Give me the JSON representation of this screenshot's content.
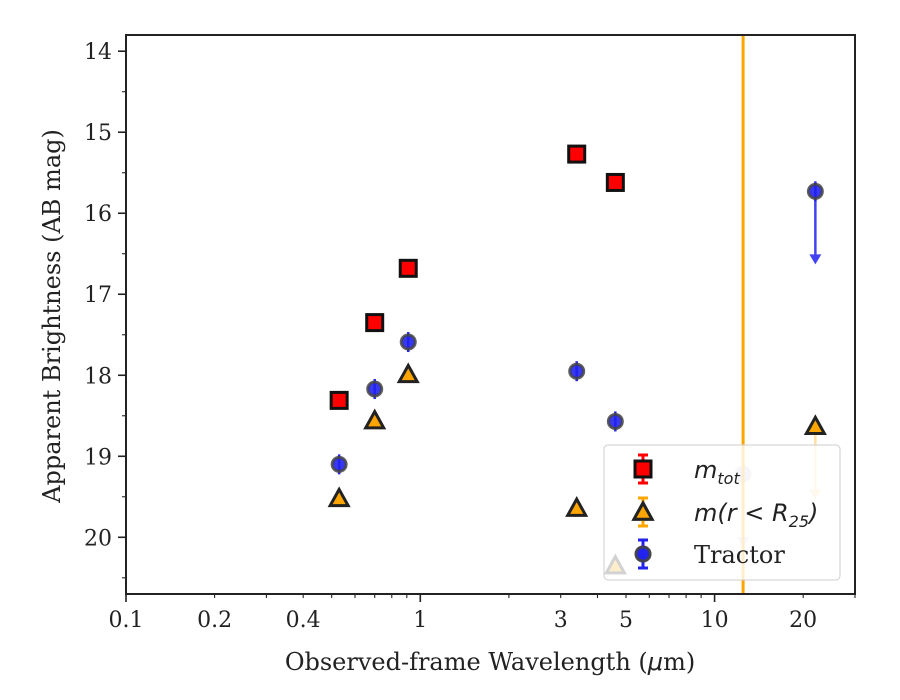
{
  "chart_data": {
    "type": "scatter",
    "title": "",
    "xlabel_prefix": "Observed-frame Wavelength (",
    "xlabel_mu": "μ",
    "xlabel_suffix": "m)",
    "ylabel": "Apparent Brightness (AB mag)",
    "x_scale": "log",
    "xlim": [
      0.1,
      30
    ],
    "ylim": [
      20.7,
      13.8
    ],
    "y_inverted": true,
    "grid": false,
    "x_tick_labels": [
      {
        "value": 0.1,
        "label": "0.1"
      },
      {
        "value": 0.2,
        "label": "0.2"
      },
      {
        "value": 0.4,
        "label": "0.4"
      },
      {
        "value": 1,
        "label": "1"
      },
      {
        "value": 3,
        "label": "3"
      },
      {
        "value": 5,
        "label": "5"
      },
      {
        "value": 10,
        "label": "10"
      },
      {
        "value": 20,
        "label": "20"
      }
    ],
    "y_tick_labels": [
      {
        "value": 14,
        "label": "14"
      },
      {
        "value": 15,
        "label": "15"
      },
      {
        "value": 16,
        "label": "16"
      },
      {
        "value": 17,
        "label": "17"
      },
      {
        "value": 18,
        "label": "18"
      },
      {
        "value": 19,
        "label": "19"
      },
      {
        "value": 20,
        "label": "20"
      }
    ],
    "vertical_line": {
      "x": 12.5,
      "color": "#FFA500"
    },
    "legend_position": "lower right",
    "series": [
      {
        "key": "mtot",
        "legend_main": "m",
        "legend_sub": "tot",
        "marker": "square",
        "color": "#FF0000",
        "edge": "#111111",
        "points": [
          {
            "x": 0.53,
            "y": 18.31
          },
          {
            "x": 0.7,
            "y": 17.35
          },
          {
            "x": 0.91,
            "y": 16.68
          },
          {
            "x": 3.4,
            "y": 15.27
          },
          {
            "x": 4.6,
            "y": 15.62
          }
        ]
      },
      {
        "key": "mr25",
        "legend_main": "m(r < R",
        "legend_sub": "25",
        "legend_end": ")",
        "marker": "triangle",
        "color": "#FFA500",
        "edge": "#222222",
        "points": [
          {
            "x": 0.53,
            "y": 19.52
          },
          {
            "x": 0.7,
            "y": 18.56
          },
          {
            "x": 0.91,
            "y": 17.99
          },
          {
            "x": 3.4,
            "y": 19.64
          },
          {
            "x": 4.6,
            "y": 20.35
          },
          {
            "x": 22,
            "y": 18.63,
            "upper_limit": true
          }
        ]
      },
      {
        "key": "tractor",
        "legend": "Tractor",
        "marker": "circle",
        "color": "#2222EE",
        "edge": "#444444",
        "points": [
          {
            "x": 0.53,
            "y": 19.1
          },
          {
            "x": 0.7,
            "y": 18.17
          },
          {
            "x": 0.91,
            "y": 17.59
          },
          {
            "x": 3.4,
            "y": 17.95
          },
          {
            "x": 4.6,
            "y": 18.57
          },
          {
            "x": 12.5,
            "y": 19.22,
            "upper_limit": true,
            "faded": true
          },
          {
            "x": 22,
            "y": 15.73,
            "upper_limit": true
          }
        ]
      }
    ]
  }
}
